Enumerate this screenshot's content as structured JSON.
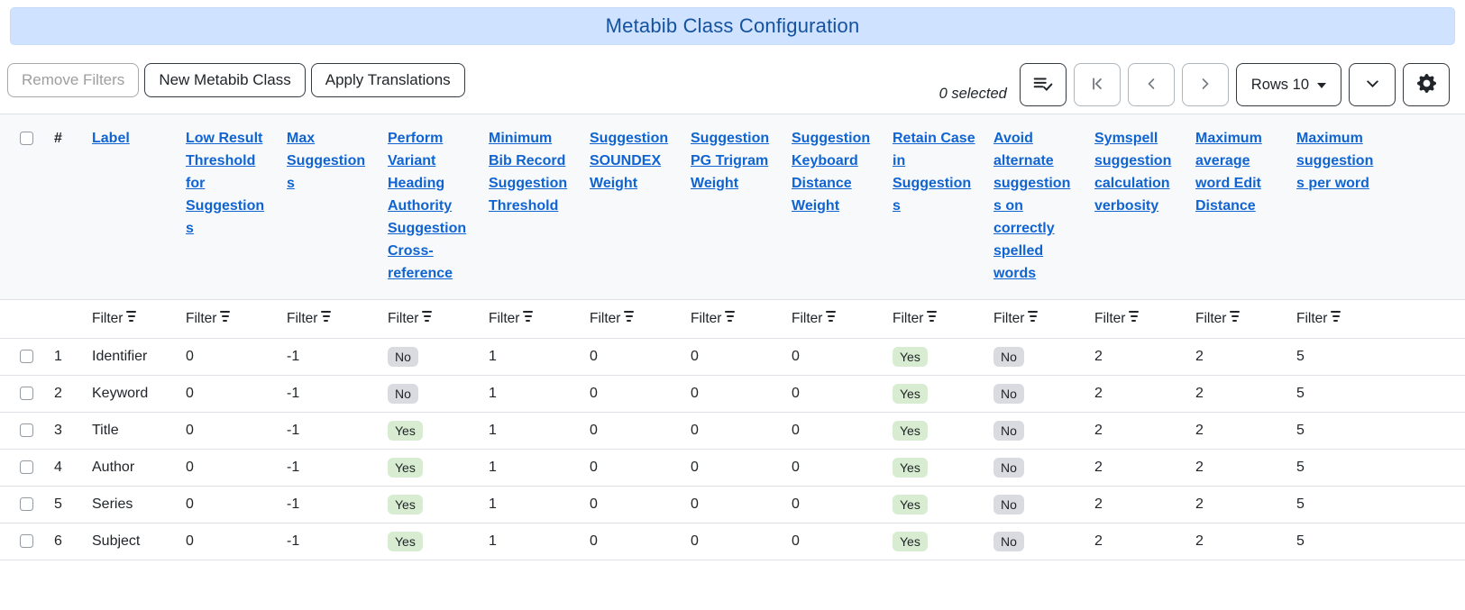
{
  "header": {
    "title": "Metabib Class Configuration"
  },
  "toolbar": {
    "remove_filters": "Remove Filters",
    "new_class": "New Metabib Class",
    "apply_translations": "Apply Translations",
    "selected_count": "0 selected",
    "rows_per_page": "Rows 10",
    "icons": [
      "list-check-icon",
      "first-page-icon",
      "chevron-left-icon",
      "chevron-right-icon",
      "caret-down-icon",
      "chevron-down-icon",
      "gear-icon"
    ]
  },
  "grid": {
    "row_number_header": "#",
    "filter_label": "Filter",
    "columns": [
      {
        "key": "label",
        "label": "Label",
        "type": "text"
      },
      {
        "key": "low_result_threshold_for_suggestions",
        "label": "Low Result Threshold for Suggestions",
        "type": "text"
      },
      {
        "key": "max_suggestions",
        "label": "Max Suggestions",
        "type": "text"
      },
      {
        "key": "perform_variant_heading_authority_suggestion_cross_reference",
        "label": "Perform Variant Heading Authority Suggestion Cross-reference",
        "type": "badge"
      },
      {
        "key": "minimum_bib_record_suggestion_threshold",
        "label": "Minimum Bib Record Suggestion Threshold",
        "type": "text"
      },
      {
        "key": "suggestion_soundex_weight",
        "label": "Suggestion SOUNDEX Weight",
        "type": "text"
      },
      {
        "key": "suggestion_pg_trigram_weight",
        "label": "Suggestion PG Trigram Weight",
        "type": "text"
      },
      {
        "key": "suggestion_keyboard_distance_weight",
        "label": "Suggestion Keyboard Distance Weight",
        "type": "text"
      },
      {
        "key": "retain_case_in_suggestions",
        "label": "Retain Case in Suggestions",
        "type": "badge"
      },
      {
        "key": "avoid_alternate_suggestions_on_correctly_spelled_words",
        "label": "Avoid alternate suggestions on correctly spelled words",
        "type": "badge"
      },
      {
        "key": "symspell_suggestion_calculation_verbosity",
        "label": "Symspell suggestion calculation verbosity",
        "type": "text"
      },
      {
        "key": "maximum_average_word_edit_distance",
        "label": "Maximum average word Edit Distance",
        "type": "text"
      },
      {
        "key": "maximum_suggestions_per_word",
        "label": "Maximum suggestions per word",
        "type": "text"
      }
    ],
    "rows": [
      {
        "num": "1",
        "values": [
          "Identifier",
          "0",
          "-1",
          "No",
          "1",
          "0",
          "0",
          "0",
          "Yes",
          "No",
          "2",
          "2",
          "5"
        ]
      },
      {
        "num": "2",
        "values": [
          "Keyword",
          "0",
          "-1",
          "No",
          "1",
          "0",
          "0",
          "0",
          "Yes",
          "No",
          "2",
          "2",
          "5"
        ]
      },
      {
        "num": "3",
        "values": [
          "Title",
          "0",
          "-1",
          "Yes",
          "1",
          "0",
          "0",
          "0",
          "Yes",
          "No",
          "2",
          "2",
          "5"
        ]
      },
      {
        "num": "4",
        "values": [
          "Author",
          "0",
          "-1",
          "Yes",
          "1",
          "0",
          "0",
          "0",
          "Yes",
          "No",
          "2",
          "2",
          "5"
        ]
      },
      {
        "num": "5",
        "values": [
          "Series",
          "0",
          "-1",
          "Yes",
          "1",
          "0",
          "0",
          "0",
          "Yes",
          "No",
          "2",
          "2",
          "5"
        ]
      },
      {
        "num": "6",
        "values": [
          "Subject",
          "0",
          "-1",
          "Yes",
          "1",
          "0",
          "0",
          "0",
          "Yes",
          "No",
          "2",
          "2",
          "5"
        ]
      }
    ]
  },
  "colors": {
    "title_bar_bg": "#cfe2ff",
    "title_text": "#14529f",
    "link": "#1064d2",
    "header_bg": "#f8f9fa",
    "border": "#dee2e6",
    "text": "#212529",
    "badge_yes_bg": "#d8ecd2",
    "badge_no_bg": "#d9dbe1"
  }
}
